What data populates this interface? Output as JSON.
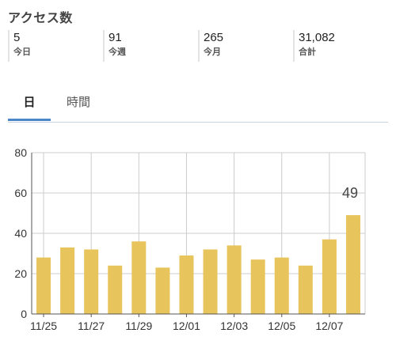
{
  "header": {
    "title": "アクセス数"
  },
  "stats": [
    {
      "value": "5",
      "label": "今日"
    },
    {
      "value": "91",
      "label": "今週"
    },
    {
      "value": "265",
      "label": "今月"
    },
    {
      "value": "31,082",
      "label": "合計"
    }
  ],
  "tabs": [
    {
      "label": "日",
      "active": true
    },
    {
      "label": "時間",
      "active": false
    }
  ],
  "colors": {
    "bar": "#e8c45c",
    "accent": "#4a86c8",
    "grid": "#cccccc",
    "axis": "#555555"
  },
  "chart_data": {
    "type": "bar",
    "title": "",
    "xlabel": "",
    "ylabel": "",
    "ylim": [
      0,
      80
    ],
    "yticks": [
      0,
      20,
      40,
      60,
      80
    ],
    "grid": true,
    "categories": [
      "11/25",
      "11/26",
      "11/27",
      "11/28",
      "11/29",
      "11/30",
      "12/01",
      "12/02",
      "12/03",
      "12/04",
      "12/05",
      "12/06",
      "12/07",
      "12/08"
    ],
    "xtick_labels": [
      "11/25",
      "11/27",
      "11/29",
      "12/01",
      "12/03",
      "12/05",
      "12/07"
    ],
    "values": [
      28,
      33,
      32,
      24,
      36,
      23,
      29,
      32,
      34,
      27,
      28,
      24,
      37,
      49
    ],
    "data_labels": [
      {
        "category": "12/08",
        "text": "49"
      }
    ]
  }
}
